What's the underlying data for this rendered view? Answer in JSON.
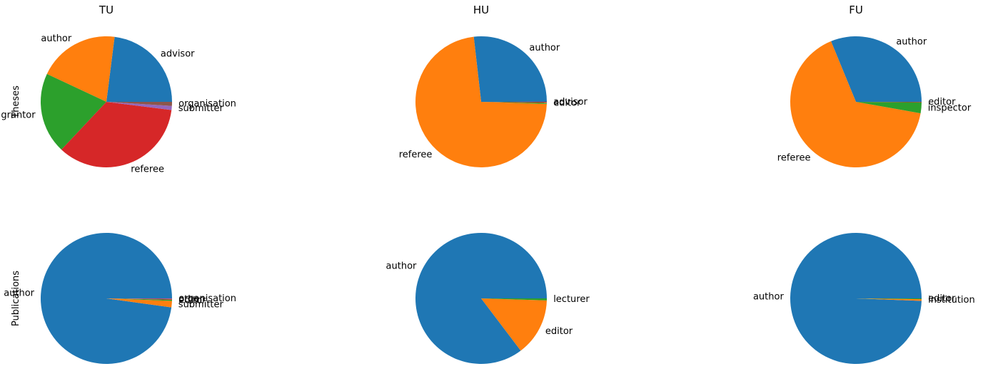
{
  "figure": {
    "columns": [
      "TU",
      "HU",
      "FU"
    ],
    "rows": [
      "Theses",
      "Publications"
    ]
  },
  "colors": {
    "blue": "#1f77b4",
    "orange": "#ff7f0e",
    "green": "#2ca02c",
    "red": "#d62728",
    "purple": "#9467bd",
    "brown": "#8c564b",
    "pink": "#e377c2",
    "gray": "#7f7f7f"
  },
  "chart_data": [
    {
      "type": "pie",
      "column": "TU",
      "row": "Theses",
      "title": "TU",
      "ylabel": "Theses",
      "labels": [
        "advisor",
        "author",
        "grantor",
        "referee",
        "submitter",
        "organisation"
      ],
      "values": [
        23.0,
        20.0,
        20.0,
        35.0,
        1.0,
        1.0
      ]
    },
    {
      "type": "pie",
      "column": "HU",
      "row": "Theses",
      "title": "HU",
      "labels": [
        "author",
        "referee",
        "editor",
        "advisor"
      ],
      "values": [
        26.8,
        72.7,
        0.3,
        0.2
      ]
    },
    {
      "type": "pie",
      "column": "FU",
      "row": "Theses",
      "title": "FU",
      "labels": [
        "author",
        "referee",
        "inspector",
        "editor"
      ],
      "values": [
        31.2,
        66.0,
        2.7,
        0.1
      ]
    },
    {
      "type": "pie",
      "column": "TU",
      "row": "Publications",
      "ylabel": "Publications",
      "labels": [
        "author",
        "submitter",
        "editor",
        "other",
        "organisation"
      ],
      "values": [
        97.8,
        1.6,
        0.3,
        0.2,
        0.1
      ]
    },
    {
      "type": "pie",
      "column": "HU",
      "row": "Publications",
      "labels": [
        "author",
        "editor",
        "lecturer"
      ],
      "values": [
        85.3,
        14.2,
        0.5
      ]
    },
    {
      "type": "pie",
      "column": "FU",
      "row": "Publications",
      "labels": [
        "author",
        "institution",
        "editor"
      ],
      "values": [
        99.4,
        0.4,
        0.2
      ]
    }
  ]
}
